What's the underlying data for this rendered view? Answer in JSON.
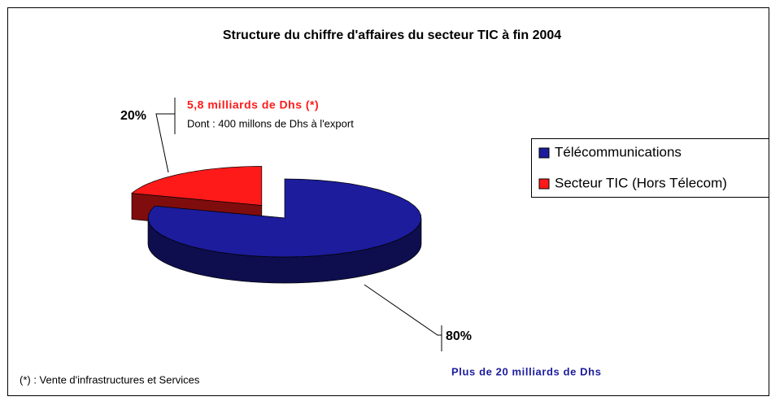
{
  "chart_data": {
    "type": "pie",
    "title": "Structure du chiffre d'affaires du secteur TIC à fin 2004",
    "categories": [
      "Télécommunications",
      "Secteur TIC (Hors Télecom)"
    ],
    "values": [
      80,
      20
    ],
    "value_labels": [
      "80%",
      "20%"
    ],
    "colors": [
      "#1c1c9c",
      "#ff1a1a"
    ],
    "annotations": [
      "Plus de 20 milliards de Dhs",
      "5,8 milliards de Dhs (*)",
      "Dont : 400 millons de Dhs à l'export"
    ],
    "footnote": "(*) : Vente d'infrastructures et Services",
    "legend": "right"
  }
}
